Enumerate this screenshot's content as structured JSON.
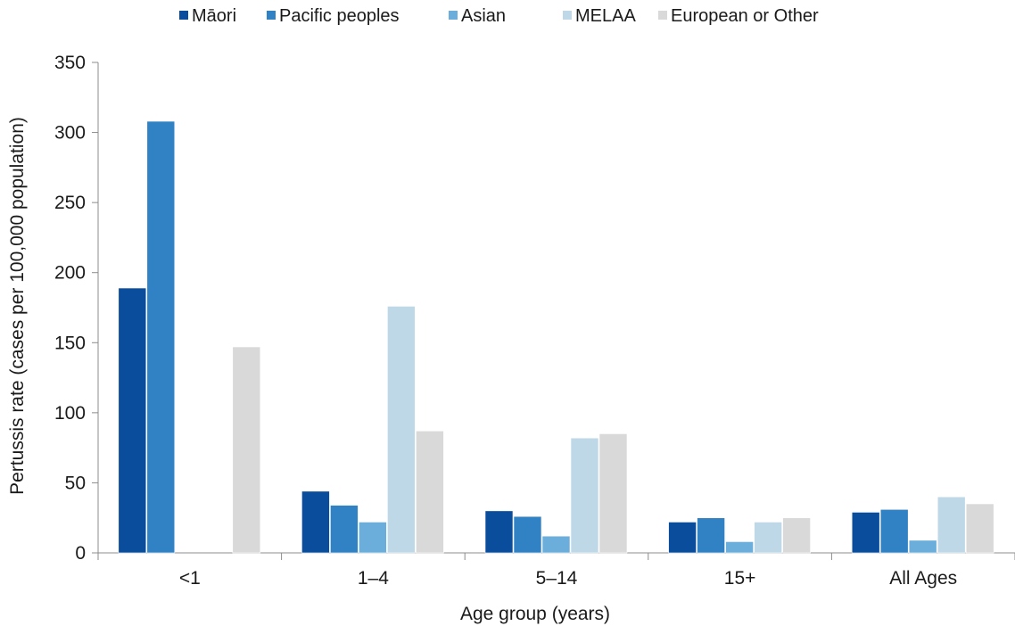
{
  "chart_data": {
    "type": "bar",
    "title": "",
    "xlabel": "Age group (years)",
    "ylabel": "Pertussis rate (cases per 100,000 population)",
    "ylim": [
      0,
      350
    ],
    "yticks": [
      0,
      50,
      100,
      150,
      200,
      250,
      300,
      350
    ],
    "grid": false,
    "legend_position": "top",
    "categories": [
      "<1",
      "1–4",
      "5–14",
      "15+",
      "All Ages"
    ],
    "series": [
      {
        "name": "Māori",
        "color": "#0a4d9c",
        "values": [
          189,
          44,
          30,
          22,
          29
        ]
      },
      {
        "name": "Pacific peoples",
        "color": "#3182c4",
        "values": [
          308,
          34,
          26,
          25,
          31
        ]
      },
      {
        "name": "Asian",
        "color": "#6baedb",
        "values": [
          0,
          22,
          12,
          8,
          9
        ]
      },
      {
        "name": "MELAA",
        "color": "#bfd8e8",
        "values": [
          0,
          176,
          82,
          22,
          40
        ]
      },
      {
        "name": "European or Other",
        "color": "#d9d9d9",
        "values": [
          147,
          87,
          85,
          25,
          35
        ]
      }
    ]
  }
}
